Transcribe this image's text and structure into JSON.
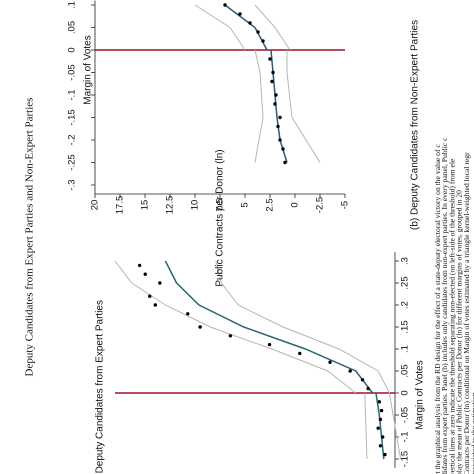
{
  "title": "Deputy Candidates from Expert Parties and Non-Expert Parties",
  "chart_data": [
    {
      "type": "scatter",
      "subtitle": "(a) Deputy Candidates from Expert Parties",
      "xlabel": "Margin of Votes",
      "xlim": [
        -0.17,
        0.32
      ],
      "ylim": [
        -5,
        20
      ],
      "xticks": [
        {
          "value": -0.15,
          "label": "-.15"
        },
        {
          "value": -0.1,
          "label": "-.1"
        },
        {
          "value": -0.05,
          "label": "-.05"
        },
        0,
        {
          "value": 0.05,
          "label": ".05"
        },
        {
          "value": 0.1,
          "label": ".1"
        },
        {
          "value": 0.15,
          "label": ".15"
        },
        {
          "value": 0.2,
          "label": ".2"
        },
        {
          "value": 0.25,
          "label": ".25"
        },
        {
          "value": 0.3,
          "label": ".3"
        }
      ],
      "x": [
        -0.14,
        -0.12,
        -0.1,
        -0.08,
        -0.06,
        -0.04,
        -0.02,
        0.01,
        0.03,
        0.05,
        0.07,
        0.09,
        0.11,
        0.13,
        0.15,
        0.18,
        0.2,
        0.22,
        0.25,
        0.27,
        0.29
      ],
      "values": [
        -4.1,
        -3.7,
        -3.9,
        -3.5,
        -3.7,
        -3.8,
        -3.6,
        -2.6,
        -2.1,
        -1,
        0.8,
        3.5,
        6.2,
        9.7,
        12.4,
        13.5,
        16.4,
        16.9,
        16,
        17.3,
        17.8
      ],
      "fit": [
        {
          "x": [
            -0.15,
            -0.1,
            -0.05,
            0
          ],
          "values": [
            -4,
            -3.8,
            -3.6,
            -3.3
          ]
        },
        {
          "x": [
            0,
            0.05,
            0.1,
            0.15,
            0.2,
            0.25,
            0.3
          ],
          "values": [
            -3,
            -1.5,
            3,
            8.5,
            12.5,
            14.5,
            15.5
          ]
        }
      ],
      "ci": [
        {
          "x": [
            -0.15,
            0
          ],
          "values": [
            -2.5,
            -2.3
          ]
        },
        {
          "x": [
            -0.15,
            0
          ],
          "values": [
            -5.5,
            -4.5
          ]
        },
        {
          "x": [
            0,
            0.05,
            0.1,
            0.15,
            0.2,
            0.25,
            0.3
          ],
          "values": [
            -1.5,
            1,
            6,
            11.5,
            15.5,
            18.5,
            20
          ]
        },
        {
          "x": [
            0,
            0.05,
            0.1,
            0.15,
            0.2,
            0.25,
            0.3
          ],
          "values": [
            -4.5,
            -3.5,
            0,
            5,
            9,
            10.5,
            11
          ]
        }
      ]
    },
    {
      "type": "scatter",
      "subtitle": "(b) Deputy Candidates from Non-Expert Parties",
      "xlabel": "Margin of Votes",
      "ylabel": "Public Contracts per Donor (ln)",
      "xlim": [
        -0.32,
        0.11
      ],
      "ylim": [
        -5,
        20
      ],
      "xticks": [
        {
          "value": -0.3,
          "label": "-.3"
        },
        {
          "value": -0.25,
          "label": "-.25"
        },
        {
          "value": -0.2,
          "label": "-.2"
        },
        {
          "value": -0.15,
          "label": "-.15"
        },
        {
          "value": -0.1,
          "label": "-.1"
        },
        {
          "value": -0.05,
          "label": "-.05"
        },
        0,
        {
          "value": 0.05,
          "label": ".05"
        },
        {
          "value": 0.1,
          "label": ".1"
        }
      ],
      "yticks": [
        -5,
        -2.5,
        0,
        2.5,
        5,
        7.5,
        10,
        12.5,
        15,
        17.5,
        20
      ],
      "x": [
        -0.25,
        -0.22,
        -0.2,
        -0.17,
        -0.15,
        -0.12,
        -0.1,
        -0.07,
        -0.05,
        -0.02,
        0.02,
        0.04,
        0.06,
        0.08,
        0.1
      ],
      "values": [
        1,
        1.2,
        1.5,
        1.7,
        1.5,
        2,
        1.9,
        2.3,
        2.2,
        2.5,
        3.2,
        3.7,
        4.5,
        5.5,
        7
      ],
      "fit": [
        {
          "x": [
            -0.25,
            -0.2,
            -0.15,
            -0.1,
            -0.05,
            0
          ],
          "values": [
            0.8,
            1.5,
            1.8,
            2,
            2.2,
            2.4
          ]
        },
        {
          "x": [
            0,
            0.05,
            0.1
          ],
          "values": [
            2.8,
            4,
            7
          ]
        }
      ],
      "ci": [
        {
          "x": [
            -0.25,
            -0.15,
            -0.05,
            0
          ],
          "values": [
            4,
            3.2,
            3.5,
            4
          ]
        },
        {
          "x": [
            -0.25,
            -0.15,
            -0.05,
            0
          ],
          "values": [
            -2.5,
            0.3,
            0.8,
            0.8
          ]
        },
        {
          "x": [
            0,
            0.05,
            0.1
          ],
          "values": [
            5,
            6.5,
            10
          ]
        },
        {
          "x": [
            0,
            0.05,
            0.1
          ],
          "values": [
            0.5,
            2,
            4
          ]
        }
      ]
    }
  ],
  "caption": [
    "rt the graphical analysis from the RD design for the effect of a state-deputy electoral victory on the value of c",
    "didates from expert parties. Panel (b) includes only candidates from non-expert parties. In every panel, Public c",
    "vertical lines at zero indicate the threshold separating non-elected (on left-side of the threshold) from ele",
    "play the mean of Public Contracts per Donor (ln) for different margins of votes, grouped in 20",
    "Contracts per Donor (ln) conditional on Margin of votes estimated by a triangle kernel-weighted local regr",
    "associated to the estimation."
  ]
}
